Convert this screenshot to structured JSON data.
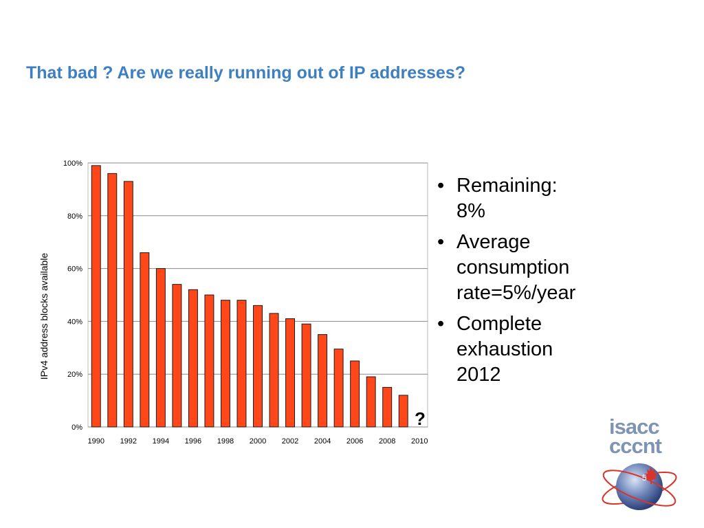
{
  "slide": {
    "title": "That bad ? Are we really running out of IP addresses?",
    "page_number": "5"
  },
  "bullets": [
    {
      "text": "Remaining:\n8%"
    },
    {
      "text": "Average\nconsumption\nrate=5%/year"
    },
    {
      "text": "Complete\nexhaustion\n2012"
    }
  ],
  "logo": {
    "line1": "isacc",
    "line2": "cccnt"
  },
  "colors": {
    "title": "#3d7fc1",
    "bar_fill": "#ff4719",
    "bar_stroke": "#1a1a1a",
    "grid": "#888888"
  },
  "chart_data": {
    "type": "bar",
    "title": "",
    "xlabel": "",
    "ylabel": "IPv4 address blocks available",
    "categories": [
      "1990",
      "1991",
      "1992",
      "1993",
      "1994",
      "1995",
      "1996",
      "1997",
      "1998",
      "1999",
      "2000",
      "2001",
      "2002",
      "2003",
      "2004",
      "2005",
      "2006",
      "2007",
      "2008",
      "2009",
      "2010"
    ],
    "x_tick_labels": [
      "1990",
      "1992",
      "1994",
      "1996",
      "1998",
      "2000",
      "2002",
      "2004",
      "2006",
      "2008",
      "2010"
    ],
    "values": [
      99,
      96,
      93,
      66,
      60,
      54,
      52,
      50,
      48,
      48,
      46,
      43,
      41,
      39,
      35,
      29.5,
      25,
      19,
      15,
      12,
      null
    ],
    "ylim": [
      0,
      100
    ],
    "y_ticks": [
      "0%",
      "20%",
      "40%",
      "60%",
      "80%",
      "100%"
    ],
    "y_tick_values": [
      0,
      20,
      40,
      60,
      80,
      100
    ],
    "annotation": "?",
    "grid": true,
    "legend": "none"
  }
}
